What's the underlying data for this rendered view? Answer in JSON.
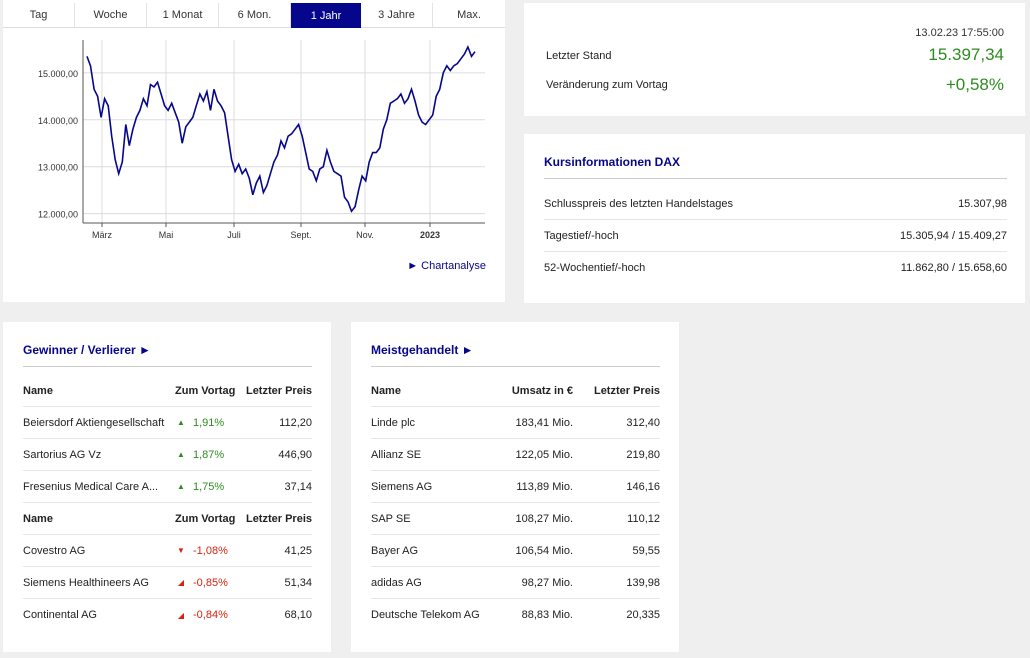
{
  "chart_card": {
    "tabs": [
      "Tag",
      "Woche",
      "1 Monat",
      "6 Mon.",
      "1 Jahr",
      "3 Jahre",
      "Max."
    ],
    "active_tab": "1 Jahr",
    "link_label": "► Chartanalyse"
  },
  "chart_data": {
    "type": "line",
    "title": "",
    "xlabel": "",
    "ylabel": "",
    "x_ticks": [
      "März",
      "Mai",
      "Juli",
      "Sept.",
      "Nov.",
      "2023"
    ],
    "y_ticks": [
      "12.000,00",
      "13.000,00",
      "14.000,00",
      "15.000,00"
    ],
    "ylim": [
      11800,
      15700
    ],
    "grid": true,
    "line_color": "#06068c",
    "series": [
      {
        "values": [
          15350,
          15150,
          14650,
          14500,
          14050,
          14450,
          14300,
          13650,
          13150,
          12850,
          13100,
          13900,
          13450,
          13800,
          14050,
          14200,
          14450,
          14300,
          14750,
          14700,
          14800,
          14550,
          14300,
          14200,
          14350,
          14150,
          13950,
          13500,
          13850,
          13950,
          14050,
          14300,
          14550,
          14400,
          14600,
          14200,
          14650,
          14400,
          14300,
          14150,
          13650,
          13150,
          12900,
          13050,
          12850,
          12950,
          12750,
          12400,
          12650,
          12800,
          12450,
          12600,
          12850,
          13100,
          13250,
          13550,
          13400,
          13650,
          13700,
          13800,
          13900,
          13650,
          13300,
          12950,
          12900,
          12700,
          12950,
          13000,
          13350,
          13100,
          12900,
          12850,
          12800,
          12350,
          12250,
          12050,
          12150,
          12500,
          12800,
          12700,
          13100,
          13300,
          13300,
          13400,
          13800,
          14000,
          14350,
          14400,
          14450,
          14550,
          14350,
          14450,
          14650,
          14400,
          14100,
          13950,
          13900,
          14000,
          14100,
          14500,
          14650,
          15000,
          15150,
          15050,
          15150,
          15200,
          15300,
          15400,
          15550,
          15350,
          15450
        ]
      }
    ]
  },
  "quote": {
    "timestamp": "13.02.23 17:55:00",
    "last_label": "Letzter Stand",
    "last_value": "15.397,34",
    "change_label": "Veränderung zum Vortag",
    "change_value": "+0,58%"
  },
  "info": {
    "title": "Kursinformationen DAX",
    "rows": [
      {
        "label": "Schlusspreis des letzten Handelstages",
        "value": "15.307,98"
      },
      {
        "label": "Tagestief/-hoch",
        "value": "15.305,94 / 15.409,27"
      },
      {
        "label": "52-Wochentief/-hoch",
        "value": "11.862,80 / 15.658,60"
      }
    ]
  },
  "gainers_losers": {
    "title": "Gewinner / Verlierer ►",
    "header": {
      "name": "Name",
      "change": "Zum Vortag",
      "price": "Letzter Preis"
    },
    "gainers": [
      {
        "name": "Beiersdorf Aktiengesellschaft",
        "change": "1,91%",
        "price": "112,20"
      },
      {
        "name": "Sartorius AG Vz",
        "change": "1,87%",
        "price": "446,90"
      },
      {
        "name": "Fresenius Medical Care A...",
        "change": "1,75%",
        "price": "37,14"
      }
    ],
    "losers": [
      {
        "name": "Covestro AG",
        "change": "-1,08%",
        "price": "41,25"
      },
      {
        "name": "Siemens Healthineers AG",
        "change": "-0,85%",
        "price": "51,34"
      },
      {
        "name": "Continental AG",
        "change": "-0,84%",
        "price": "68,10"
      }
    ],
    "up_color": "#2e8b22",
    "down_color": "#d4240f"
  },
  "most_traded": {
    "title": "Meistgehandelt ►",
    "header": {
      "name": "Name",
      "volume": "Umsatz in €",
      "price": "Letzter Preis"
    },
    "rows": [
      {
        "name": "Linde plc",
        "volume": "183,41 Mio.",
        "price": "312,40"
      },
      {
        "name": "Allianz SE",
        "volume": "122,05 Mio.",
        "price": "219,80"
      },
      {
        "name": "Siemens AG",
        "volume": "113,89 Mio.",
        "price": "146,16"
      },
      {
        "name": "SAP SE",
        "volume": "108,27 Mio.",
        "price": "110,12"
      },
      {
        "name": "Bayer AG",
        "volume": "106,54 Mio.",
        "price": "59,55"
      },
      {
        "name": "adidas AG",
        "volume": "98,27 Mio.",
        "price": "139,98"
      },
      {
        "name": "Deutsche Telekom AG",
        "volume": "88,83 Mio.",
        "price": "20,335"
      }
    ]
  }
}
